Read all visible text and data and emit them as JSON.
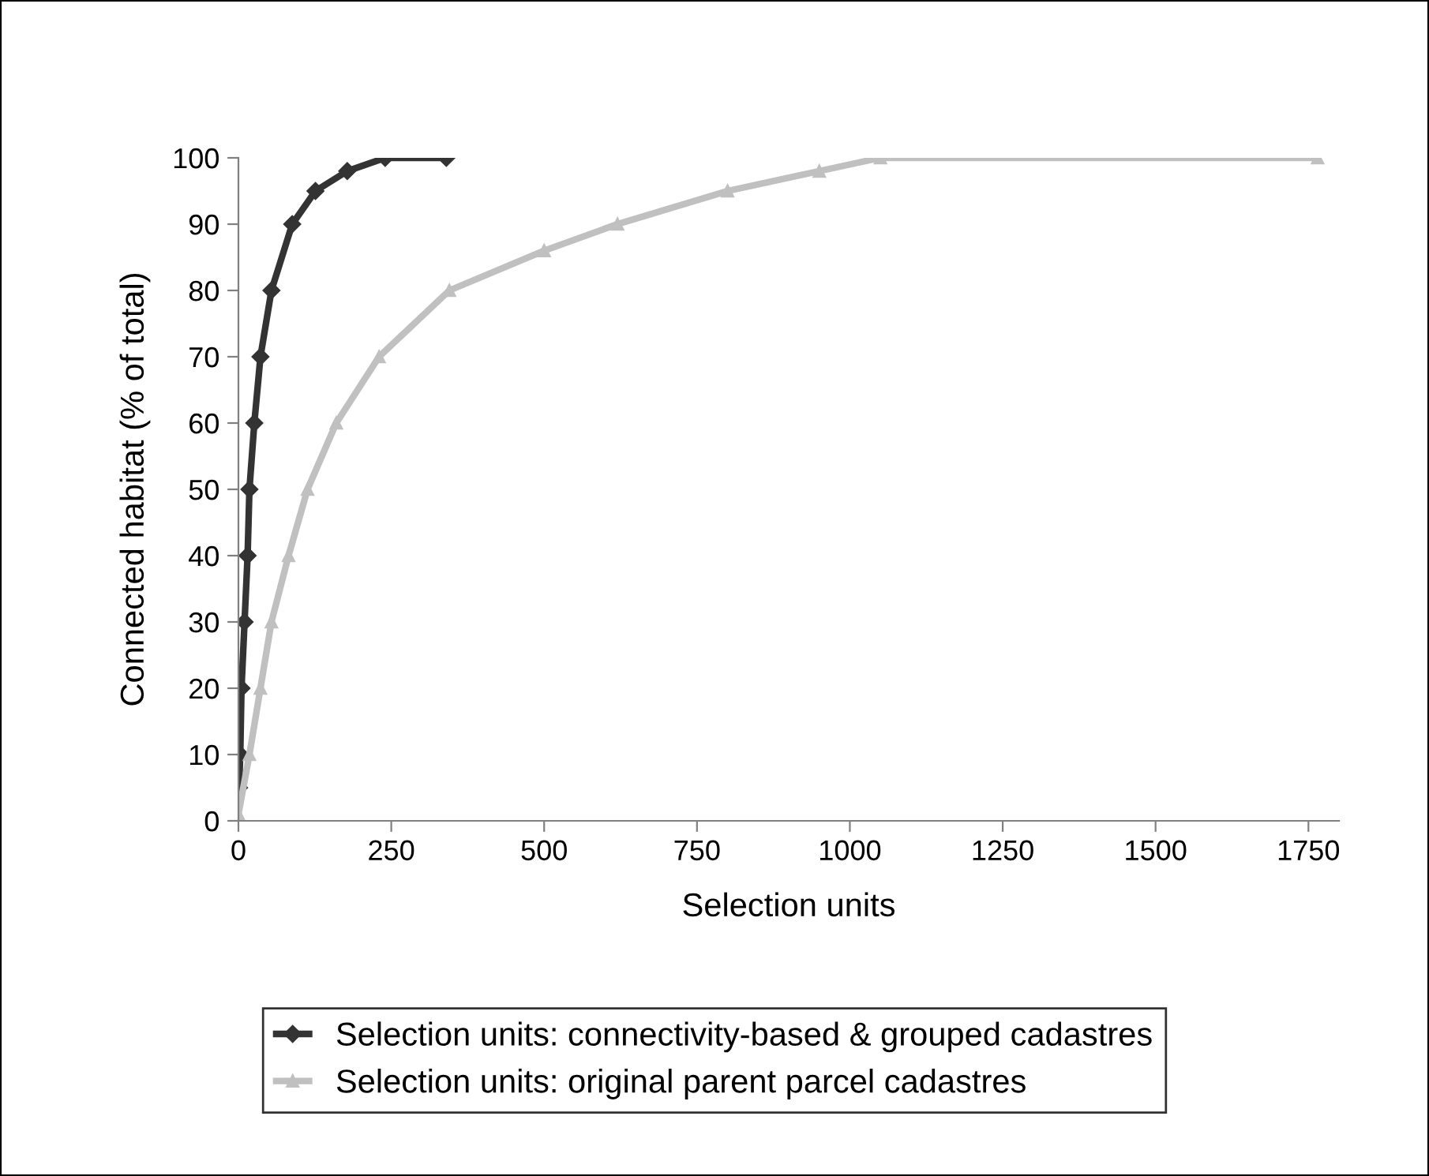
{
  "chart_data": {
    "type": "line",
    "xlabel": "Selection units",
    "ylabel": "Connected habitat (% of total)",
    "xlim": [
      0,
      1800
    ],
    "xticks": [
      0,
      250,
      500,
      750,
      1000,
      1250,
      1500,
      1750
    ],
    "ylim": [
      0,
      100
    ],
    "yticks": [
      0,
      10,
      20,
      30,
      40,
      50,
      60,
      70,
      80,
      90,
      100
    ],
    "grid": false,
    "legend": "bottom",
    "series": [
      {
        "name": "Selection units: connectivity-based & grouped cadastres",
        "color": "#333333",
        "marker": "diamond",
        "x": [
          1,
          3,
          5,
          10,
          15,
          18,
          26,
          36,
          54,
          88,
          126,
          178,
          240,
          340
        ],
        "values": [
          5,
          10,
          20,
          30,
          40,
          50,
          60,
          70,
          80,
          90,
          95,
          98,
          100,
          100
        ]
      },
      {
        "name": "Selection units: original parent parcel cadastres",
        "color": "#c0c0c0",
        "marker": "triangle",
        "x": [
          0,
          18,
          36,
          54,
          82,
          113,
          160,
          230,
          345,
          500,
          620,
          800,
          950,
          1050,
          1765
        ],
        "values": [
          1,
          10,
          20,
          30,
          40,
          50,
          60,
          70,
          80,
          86,
          90,
          95,
          98,
          100,
          100
        ]
      }
    ]
  }
}
